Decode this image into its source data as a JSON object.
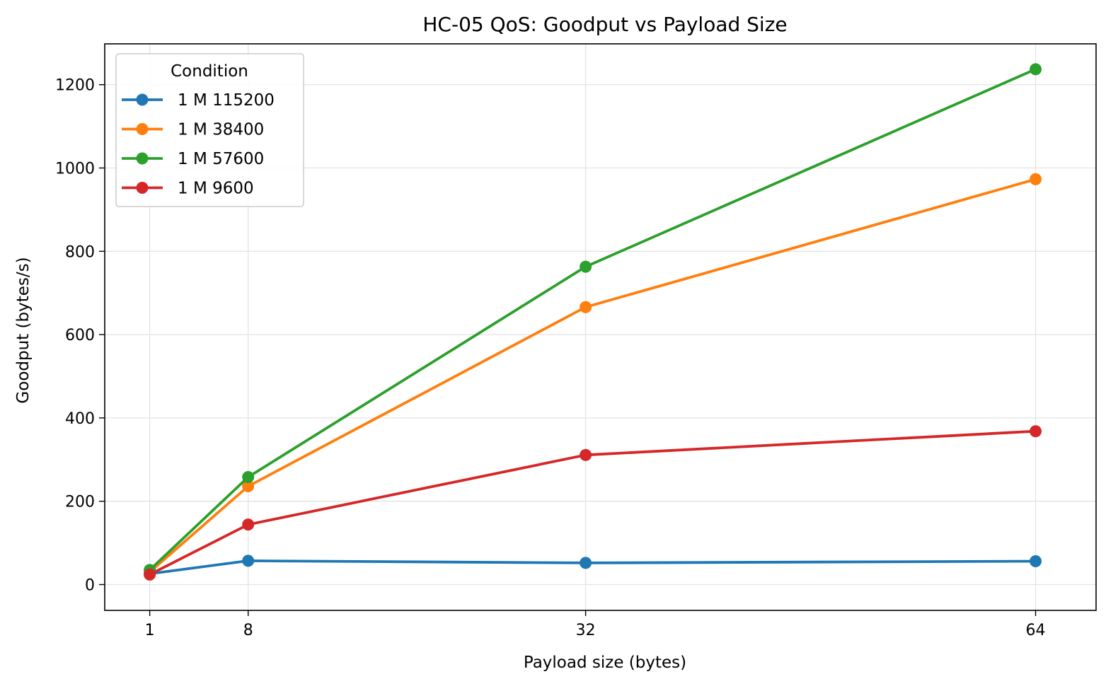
{
  "chart_data": {
    "type": "line",
    "title": "HC-05 QoS: Goodput vs Payload Size",
    "xlabel": "Payload size (bytes)",
    "ylabel": "Goodput (bytes/s)",
    "x": [
      1,
      8,
      32,
      64
    ],
    "xticks": [
      "1",
      "8",
      "32",
      "64"
    ],
    "xlim": [
      -2.2,
      68.3
    ],
    "yticks": [
      0,
      200,
      400,
      600,
      800,
      1000,
      1200
    ],
    "ylim": [
      -62,
      1298
    ],
    "grid": true,
    "legend": {
      "title": "Condition",
      "placement": "top-left"
    },
    "series": [
      {
        "name": "1 M 115200",
        "color": "#1f77b4",
        "values": [
          26,
          57,
          52,
          56
        ]
      },
      {
        "name": "1 M 38400",
        "color": "#ff7f0e",
        "values": [
          30,
          236,
          666,
          973
        ]
      },
      {
        "name": "1 M 57600",
        "color": "#2ca02c",
        "values": [
          35,
          258,
          763,
          1237
        ]
      },
      {
        "name": "1 M 9600",
        "color": "#d62728",
        "values": [
          24,
          144,
          311,
          368
        ]
      }
    ]
  }
}
